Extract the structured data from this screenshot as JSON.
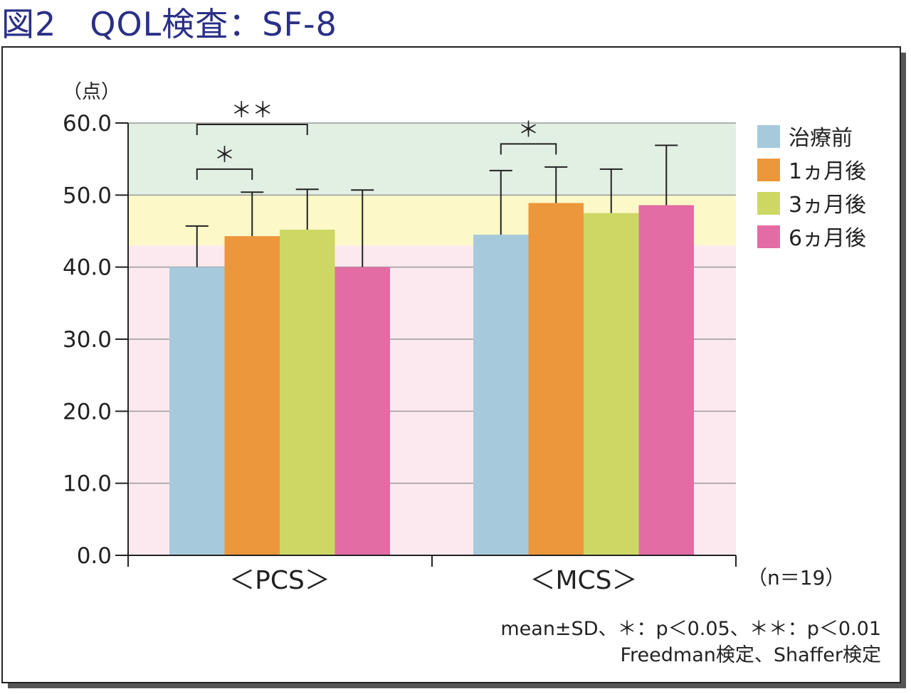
{
  "figure_title": "図2　QOL検査：SF-8",
  "colors": {
    "title": "#2a2f86",
    "band_high": "#e2efe3",
    "band_mid": "#fcf8c8",
    "band_low": "#fbe9ef",
    "frame_shadow": "#555555"
  },
  "chart_data": {
    "type": "bar",
    "title": "",
    "ylabel": "（点）",
    "xlabel": "",
    "ylim": [
      0,
      60
    ],
    "ytick_labels": [
      "0.0",
      "10.0",
      "20.0",
      "30.0",
      "40.0",
      "50.0",
      "60.0"
    ],
    "yticks": [
      0,
      10,
      20,
      30,
      40,
      50,
      60
    ],
    "grid": true,
    "background_bands": [
      {
        "from": 0,
        "to": 43,
        "color": "#fbe9ef"
      },
      {
        "from": 43,
        "to": 50,
        "color": "#fcf8c8"
      },
      {
        "from": 50,
        "to": 60,
        "color": "#e2efe3"
      }
    ],
    "categories": [
      "＜PCS＞",
      "＜MCS＞"
    ],
    "series": [
      {
        "name": "治療前",
        "color": "#a6cadc",
        "values": [
          40.0,
          44.5
        ],
        "sd": [
          5.7,
          8.9
        ]
      },
      {
        "name": "1ヵ月後",
        "color": "#ec973b",
        "values": [
          44.3,
          48.9
        ],
        "sd": [
          6.1,
          5.0
        ]
      },
      {
        "name": "3ヵ月後",
        "color": "#cdd764",
        "values": [
          45.2,
          47.5
        ],
        "sd": [
          5.6,
          6.1
        ]
      },
      {
        "name": "6ヵ月後",
        "color": "#e36ca5",
        "values": [
          40.0,
          48.6
        ],
        "sd": [
          10.7,
          8.3
        ]
      }
    ],
    "legend_position": "right",
    "significance": [
      {
        "category": 0,
        "from_series": 0,
        "to_series": 1,
        "label": "＊",
        "y": 53.6
      },
      {
        "category": 0,
        "from_series": 0,
        "to_series": 2,
        "label": "＊＊",
        "y": 59.8
      },
      {
        "category": 1,
        "from_series": 0,
        "to_series": 1,
        "label": "＊",
        "y": 57.1
      }
    ],
    "sample_size": "（n＝19）",
    "notes": [
      "mean±SD、＊：p＜0.05、＊＊：p＜0.01",
      "Freedman検定、Shaffer検定"
    ]
  }
}
